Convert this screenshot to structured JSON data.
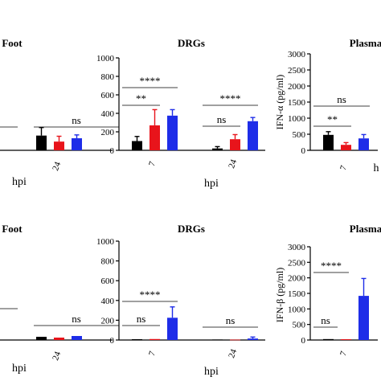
{
  "chart_data": [
    {
      "type": "bar",
      "panel": "top-left",
      "title": "Foot",
      "xlabel": "hpi",
      "categories": [
        "24"
      ],
      "colors": [
        "#000000",
        "#e8141b",
        "#1e2de8"
      ],
      "series_values": [
        [
          110
        ],
        [
          65
        ],
        [
          90
        ]
      ],
      "errors": [
        [
          60
        ],
        [
          40
        ],
        [
          25
        ]
      ],
      "annotations": [
        "ns"
      ]
    },
    {
      "type": "bar",
      "panel": "top-middle",
      "title": "DRGs",
      "xlabel": "hpi",
      "ylim": [
        0,
        1000
      ],
      "yticks": [
        "0",
        "200",
        "400",
        "600",
        "800",
        "1000"
      ],
      "categories": [
        "7",
        "24"
      ],
      "colors": [
        "#000000",
        "#e8141b",
        "#1e2de8"
      ],
      "series_values": [
        [
          100,
          20
        ],
        [
          270,
          120
        ],
        [
          375,
          315
        ]
      ],
      "errors": [
        [
          50,
          20
        ],
        [
          170,
          50
        ],
        [
          65,
          40
        ]
      ],
      "annotations": [
        "****",
        "**",
        "****",
        "ns"
      ]
    },
    {
      "type": "bar",
      "panel": "top-right",
      "title": "Plasma",
      "xlabel": "h",
      "ylabel": "IFN-α (pg/ml)",
      "ylim": [
        0,
        3000
      ],
      "yticks": [
        "0",
        "500",
        "1000",
        "1500",
        "2000",
        "2500",
        "3000"
      ],
      "categories": [
        "7"
      ],
      "colors": [
        "#000000",
        "#e8141b",
        "#1e2de8"
      ],
      "series_values": [
        [
          480
        ],
        [
          170
        ],
        [
          370
        ]
      ],
      "errors": [
        [
          100
        ],
        [
          70
        ],
        [
          120
        ]
      ],
      "annotations": [
        "ns",
        "**"
      ]
    },
    {
      "type": "bar",
      "panel": "bottom-left",
      "title": "Foot",
      "xlabel": "hpi",
      "categories": [
        "24"
      ],
      "colors": [
        "#000000",
        "#e8141b",
        "#1e2de8"
      ],
      "series_values": [
        [
          4
        ],
        [
          3
        ],
        [
          5
        ]
      ],
      "errors": [
        [
          0
        ],
        [
          0
        ],
        [
          0
        ]
      ],
      "annotations": [
        "ns"
      ]
    },
    {
      "type": "bar",
      "panel": "bottom-middle",
      "title": "DRGs",
      "xlabel": "hpi",
      "ylim": [
        0,
        1000
      ],
      "yticks": [
        "0",
        "200",
        "400",
        "600",
        "800",
        "1000"
      ],
      "categories": [
        "7",
        "24"
      ],
      "colors": [
        "#000000",
        "#e8141b",
        "#1e2de8"
      ],
      "series_values": [
        [
          8,
          5
        ],
        [
          10,
          4
        ],
        [
          225,
          15
        ]
      ],
      "errors": [
        [
          0,
          0
        ],
        [
          0,
          0
        ],
        [
          110,
          15
        ]
      ],
      "annotations": [
        "****",
        "ns",
        "ns"
      ]
    },
    {
      "type": "bar",
      "panel": "bottom-right",
      "title": "Plasma",
      "ylabel": "IFN-β (pg/ml)",
      "ylim": [
        0,
        3000
      ],
      "yticks": [
        "0",
        "500",
        "1000",
        "1500",
        "2000",
        "2500",
        "3000"
      ],
      "categories": [
        "7"
      ],
      "colors": [
        "#000000",
        "#e8141b",
        "#1e2de8"
      ],
      "series_values": [
        [
          30
        ],
        [
          25
        ],
        [
          1420
        ]
      ],
      "errors": [
        [
          0
        ],
        [
          0
        ],
        [
          560
        ]
      ],
      "annotations": [
        "****",
        "ns"
      ]
    }
  ]
}
